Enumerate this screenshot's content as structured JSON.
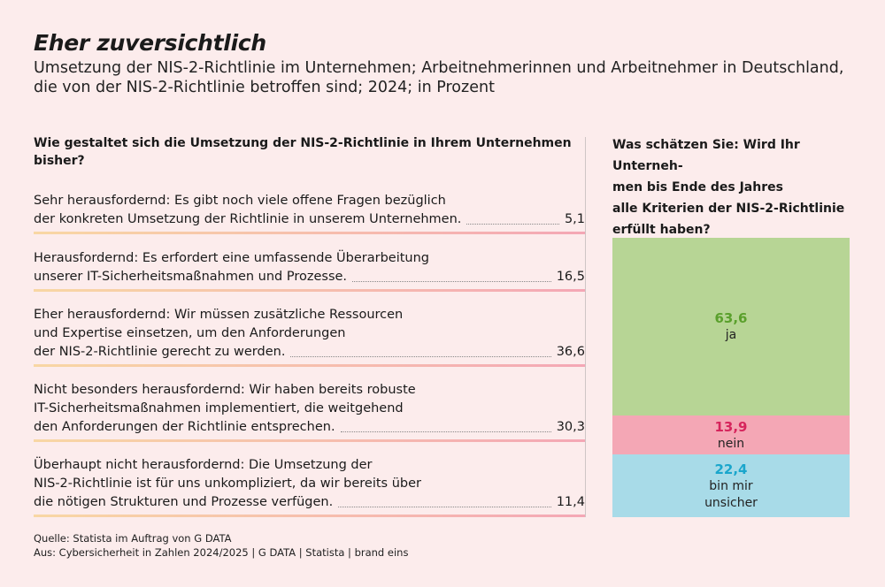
{
  "title": "Eher zuversichtlich",
  "subtitle": "Umsetzung der NIS-2-Richtlinie im Unternehmen; Arbeitnehmerinnen und Arbeitnehmer in Deutschland, die von der NIS-2-Richtlinie betroffen sind; 2024; in Prozent",
  "question_left": "Wie gestaltet sich die Umsetzung der NIS-2-Richtlinie in Ihrem Unternehmen bisher?",
  "question_right": "Was schätzen Sie: Wird Ihr Unterneh-men bis Ende des Jahres alle Kriterien der NIS-2-Richtlinie erfüllt haben?",
  "question_right_lines": [
    "Was schätzen Sie: Wird Ihr Unterneh-",
    "men bis Ende des Jahres",
    "alle Kriterien der NIS-2-Richtlinie",
    "erfüllt haben?"
  ],
  "colors": {
    "ja": "#b7d595",
    "ja_text": "#5aa02c",
    "nein": "#f4a7b5",
    "nein_text": "#d6245c",
    "unsicher": "#a8dbe8",
    "unsicher_text": "#1aa6cc"
  },
  "chart_data": [
    {
      "type": "table",
      "title": "Wie gestaltet sich die Umsetzung der NIS-2-Richtlinie in Ihrem Unternehmen bisher?",
      "rows": [
        {
          "lines": [
            "Sehr herausfordernd: Es gibt noch viele offene Fragen bezüglich",
            "der konkreten Umsetzung der Richtlinie in unserem Unternehmen."
          ],
          "value": 5.1,
          "label": "5,1"
        },
        {
          "lines": [
            "Herausfordernd: Es erfordert eine umfassende Überarbeitung",
            "unserer IT-Sicherheitsmaßnahmen und Prozesse."
          ],
          "value": 16.5,
          "label": "16,5"
        },
        {
          "lines": [
            "Eher herausfordernd: Wir müssen zusätzliche Ressourcen",
            "und Expertise einsetzen, um den Anforderungen",
            "der NIS-2-Richtlinie gerecht zu werden."
          ],
          "value": 36.6,
          "label": "36,6"
        },
        {
          "lines": [
            "Nicht besonders herausfordernd: Wir haben bereits robuste",
            "IT-Sicherheitsmaßnahmen implementiert, die weitgehend",
            "den Anforderungen der Richtlinie entsprechen."
          ],
          "value": 30.3,
          "label": "30,3"
        },
        {
          "lines": [
            "Überhaupt nicht herausfordernd: Die Umsetzung der",
            "NIS-2-Richtlinie ist für uns unkompliziert, da wir bereits über",
            "die nötigen Strukturen und Prozesse verfügen."
          ],
          "value": 11.4,
          "label": "11,4"
        }
      ]
    },
    {
      "type": "bar",
      "stacked": true,
      "title": "Was schätzen Sie: Wird Ihr Unternehmen bis Ende des Jahres alle Kriterien der NIS-2-Richtlinie erfüllt haben?",
      "series": [
        {
          "name": "ja",
          "value": 63.6,
          "label": "63,6",
          "name_lines": [
            "ja"
          ]
        },
        {
          "name": "nein",
          "value": 13.9,
          "label": "13,9",
          "name_lines": [
            "nein"
          ]
        },
        {
          "name": "bin mir unsicher",
          "value": 22.4,
          "label": "22,4",
          "name_lines": [
            "bin mir",
            "unsicher"
          ]
        }
      ]
    }
  ],
  "footer": {
    "source": "Quelle: Statista im Auftrag von G DATA",
    "from": "Aus: Cybersicherheit in Zahlen 2024/2025 | G DATA | Statista | brand eins"
  }
}
